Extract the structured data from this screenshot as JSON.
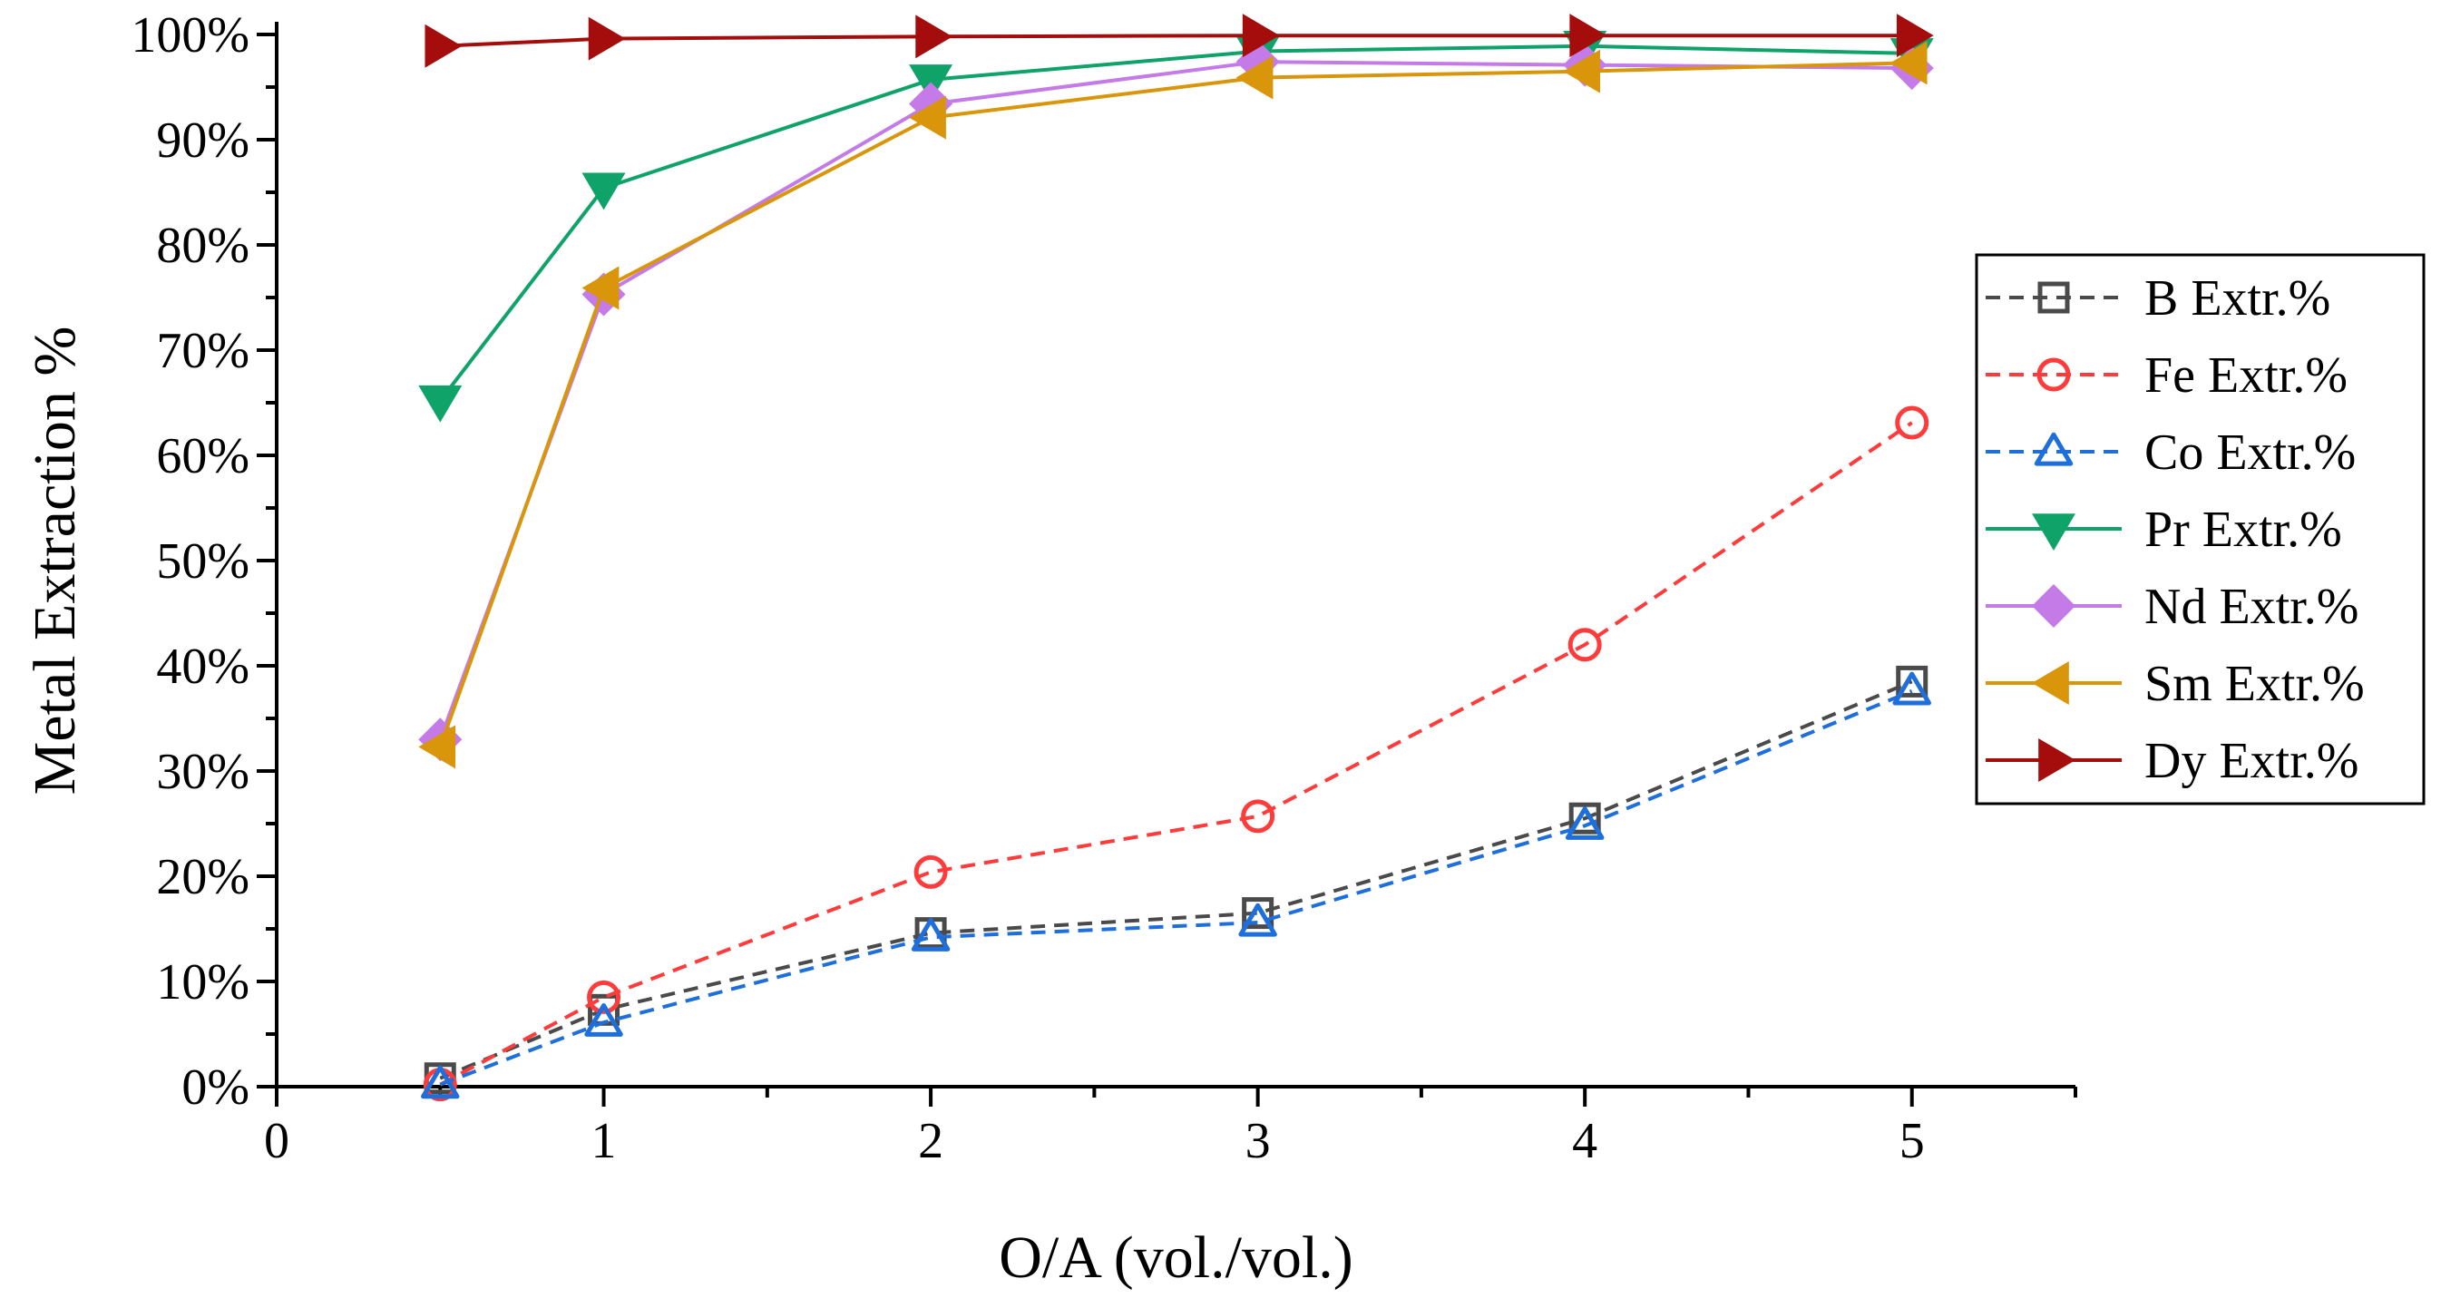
{
  "chart_data": {
    "type": "line",
    "title": "",
    "xlabel": "O/A (vol./vol.)",
    "ylabel": "Metal Extraction %",
    "xlim": [
      0,
      5.5
    ],
    "ylim": [
      0,
      100
    ],
    "x_ticks": [
      0,
      1,
      2,
      3,
      4,
      5
    ],
    "x_tick_labels": [
      "0",
      "1",
      "2",
      "3",
      "4",
      "5"
    ],
    "y_ticks": [
      0,
      10,
      20,
      30,
      40,
      50,
      60,
      70,
      80,
      90,
      100
    ],
    "y_tick_labels": [
      "0%",
      "10%",
      "20%",
      "30%",
      "40%",
      "50%",
      "60%",
      "70%",
      "80%",
      "90%",
      "100%"
    ],
    "grid": false,
    "legend_position": "right",
    "x": [
      0.5,
      1,
      2,
      3,
      4,
      5
    ],
    "series": [
      {
        "name": "B Extr.%",
        "values": [
          0.8,
          7.3,
          14.6,
          16.5,
          25.5,
          38.5
        ],
        "color": "#4a4a4a",
        "marker": "square",
        "dashed": true,
        "filled": false
      },
      {
        "name": "Fe Extr.%",
        "values": [
          0.2,
          8.5,
          20.4,
          25.7,
          42.0,
          63.1
        ],
        "color": "#ff3b3b",
        "marker": "circle",
        "dashed": true,
        "filled": false
      },
      {
        "name": "Co Extr.%",
        "values": [
          0.2,
          6.1,
          14.2,
          15.6,
          24.8,
          37.6
        ],
        "color": "#1e6fdc",
        "marker": "triangle-up",
        "dashed": true,
        "filled": false
      },
      {
        "name": "Pr Extr.%",
        "values": [
          65.2,
          85.4,
          95.7,
          98.4,
          98.9,
          98.2
        ],
        "color": "#0fa36a",
        "marker": "triangle-down",
        "dashed": false,
        "filled": true
      },
      {
        "name": "Nd Extr.%",
        "values": [
          33.0,
          75.3,
          93.4,
          97.4,
          97.1,
          96.8
        ],
        "color": "#c47be8",
        "marker": "diamond",
        "dashed": false,
        "filled": true
      },
      {
        "name": "Sm Extr.%",
        "values": [
          32.3,
          75.9,
          92.1,
          95.9,
          96.5,
          97.3
        ],
        "color": "#d9960a",
        "marker": "triangle-left",
        "dashed": false,
        "filled": true
      },
      {
        "name": "Dy Extr.%",
        "values": [
          98.9,
          99.6,
          99.8,
          99.9,
          99.9,
          99.9
        ],
        "color": "#a50d0d",
        "marker": "triangle-right",
        "dashed": false,
        "filled": true
      }
    ]
  }
}
